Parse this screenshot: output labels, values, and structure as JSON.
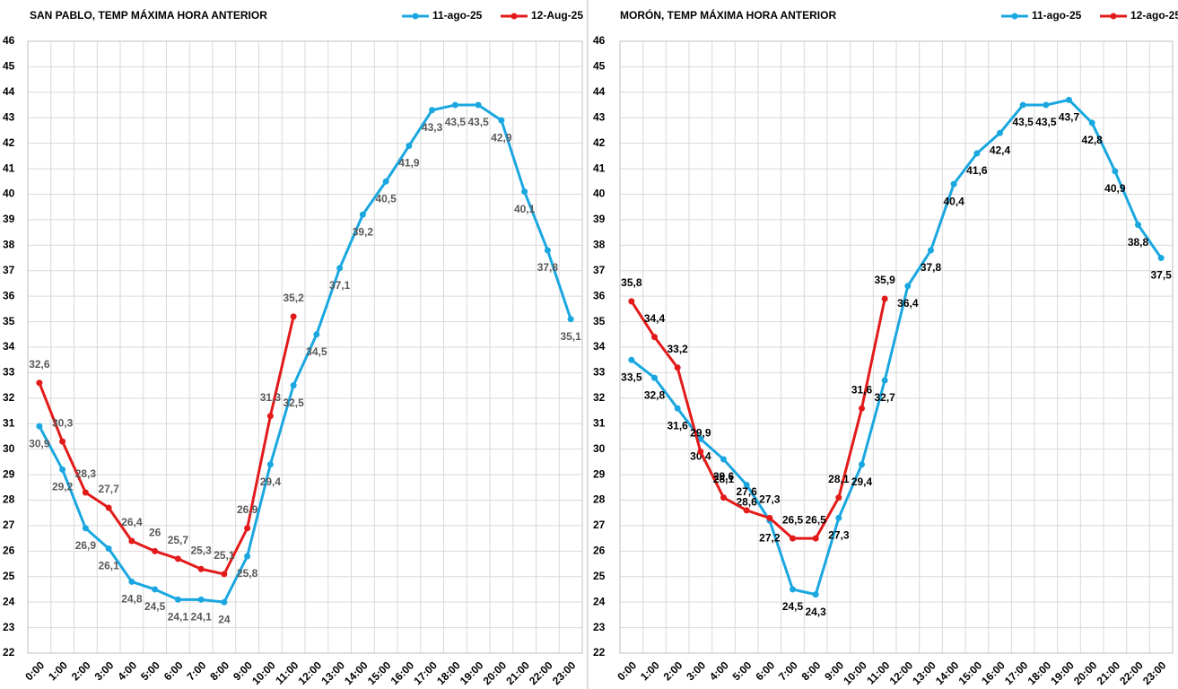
{
  "chart_data": [
    {
      "type": "line",
      "title": "SAN PABLO, TEMP MÁXIMA HORA ANTERIOR",
      "legend": "top-right",
      "grid": true,
      "categories": [
        "0:00",
        "1:00",
        "2:00",
        "3:00",
        "4:00",
        "5:00",
        "6:00",
        "7:00",
        "8:00",
        "9:00",
        "10:00",
        "11:00",
        "12:00",
        "13:00",
        "14:00",
        "15:00",
        "16:00",
        "17:00",
        "18:00",
        "19:00",
        "20:00",
        "21:00",
        "22:00",
        "23:00"
      ],
      "ylim": [
        22,
        46
      ],
      "yticks": [
        22,
        23,
        24,
        25,
        26,
        27,
        28,
        29,
        30,
        31,
        32,
        33,
        34,
        35,
        36,
        37,
        38,
        39,
        40,
        41,
        42,
        43,
        44,
        45,
        46
      ],
      "series": [
        {
          "name": "11-ago-25",
          "color": "#1aa7e0",
          "values": [
            30.9,
            29.2,
            26.9,
            26.1,
            24.8,
            24.5,
            24.1,
            24.1,
            24,
            25.8,
            29.4,
            32.5,
            34.5,
            37.1,
            39.2,
            40.5,
            41.9,
            43.3,
            43.5,
            43.5,
            42.9,
            40.1,
            37.8,
            35.1
          ],
          "value_labels": [
            "30,9",
            "29,2",
            "26,9",
            "26,1",
            "24,8",
            "24,5",
            "24,1",
            "24,1",
            "24",
            "25,8",
            "29,4",
            "32,5",
            "34,5",
            "37,1",
            "39,2",
            "40,5",
            "41,9",
            "43,3",
            "43,5",
            "43,5",
            "42,9",
            "40,1",
            "37,8",
            "35,1"
          ]
        },
        {
          "name": "12-Aug-25",
          "color": "#e31a1a",
          "values": [
            32.6,
            30.3,
            28.3,
            27.7,
            26.4,
            26,
            25.7,
            25.3,
            25.1,
            26.9,
            31.3,
            35.2,
            null,
            null,
            null,
            null,
            null,
            null,
            null,
            null,
            null,
            null,
            null,
            null
          ],
          "value_labels": [
            "32,6",
            "30,3",
            "28,3",
            "27,7",
            "26,4",
            "26",
            "25,7",
            "25,3",
            "25,1",
            "26,9",
            "31,3",
            "35,2",
            null,
            null,
            null,
            null,
            null,
            null,
            null,
            null,
            null,
            null,
            null,
            null
          ]
        }
      ]
    },
    {
      "type": "line",
      "title": "MORÓN, TEMP MÁXIMA HORA ANTERIOR",
      "legend": "top-right",
      "grid": true,
      "categories": [
        "0:00",
        "1:00",
        "2:00",
        "3:00",
        "4:00",
        "5:00",
        "6:00",
        "7:00",
        "8:00",
        "9:00",
        "10:00",
        "11:00",
        "12:00",
        "13:00",
        "14:00",
        "15:00",
        "16:00",
        "17:00",
        "18:00",
        "19:00",
        "20:00",
        "21:00",
        "22:00",
        "23:00"
      ],
      "ylim": [
        22,
        46
      ],
      "yticks": [
        22,
        23,
        24,
        25,
        26,
        27,
        28,
        29,
        30,
        31,
        32,
        33,
        34,
        35,
        36,
        37,
        38,
        39,
        40,
        41,
        42,
        43,
        44,
        45,
        46
      ],
      "series": [
        {
          "name": "11-ago-25",
          "color": "#1aa7e0",
          "values": [
            33.5,
            32.8,
            31.6,
            30.4,
            29.6,
            28.6,
            27.2,
            24.5,
            24.3,
            27.3,
            29.4,
            32.7,
            36.4,
            37.8,
            40.4,
            41.6,
            42.4,
            43.5,
            43.5,
            43.7,
            42.8,
            40.9,
            38.8,
            37.5
          ],
          "value_labels": [
            "33,5",
            "32,8",
            "31,6",
            "30,4",
            "29,6",
            "28,6",
            "27,2",
            "24,5",
            "24,3",
            "27,3",
            "29,4",
            "32,7",
            "36,4",
            "37,8",
            "40,4",
            "41,6",
            "42,4",
            "43,5",
            "43,5",
            "43,7",
            "42,8",
            "40,9",
            "38,8",
            "37,5"
          ]
        },
        {
          "name": "12-ago-25",
          "color": "#e31a1a",
          "values": [
            35.8,
            34.4,
            33.2,
            29.9,
            28.1,
            27.6,
            27.3,
            26.5,
            26.5,
            28.1,
            31.6,
            35.9,
            null,
            null,
            null,
            null,
            null,
            null,
            null,
            null,
            null,
            null,
            null,
            null
          ],
          "value_labels": [
            "35,8",
            "34,4",
            "33,2",
            "29,9",
            "28,1",
            "27,6",
            "27,3",
            "26,5",
            "26,5",
            "28,1",
            "31,6",
            "35,9",
            null,
            null,
            null,
            null,
            null,
            null,
            null,
            null,
            null,
            null,
            null,
            null
          ]
        }
      ]
    }
  ]
}
